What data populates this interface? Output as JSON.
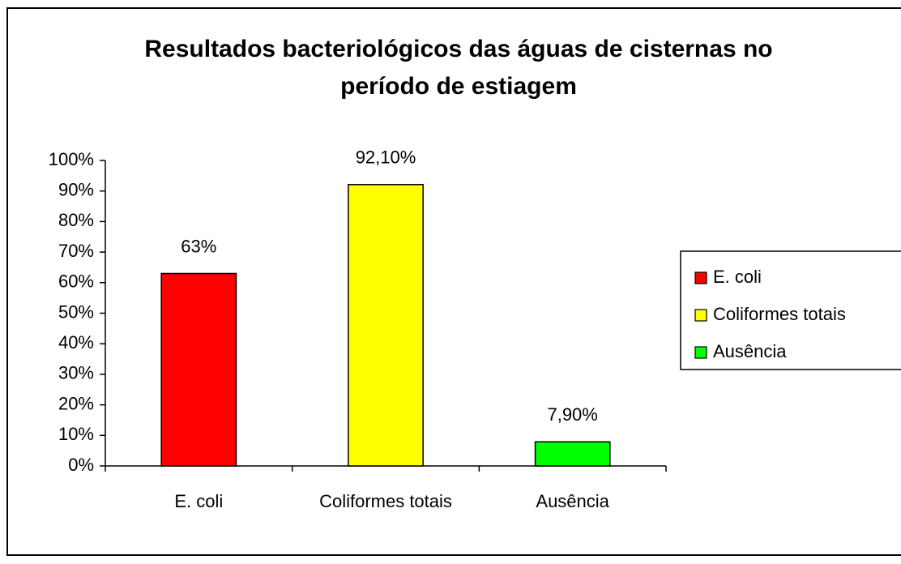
{
  "chart_data": {
    "type": "bar",
    "title": "Resultados bacteriológicos das águas de cisternas no período de estiagem",
    "categories": [
      "E. coli",
      "Coliformes totais",
      "Ausência"
    ],
    "values": [
      63,
      92.1,
      7.9
    ],
    "value_labels": [
      "63%",
      "92,10%",
      "7,90%"
    ],
    "colors": [
      "#ff0000",
      "#ffff00",
      "#00ff00"
    ],
    "ylim": [
      0,
      100
    ],
    "yticks": [
      {
        "value": 0,
        "label": "0%"
      },
      {
        "value": 10,
        "label": "10%"
      },
      {
        "value": 20,
        "label": "20%"
      },
      {
        "value": 30,
        "label": "30%"
      },
      {
        "value": 40,
        "label": "40%"
      },
      {
        "value": 50,
        "label": "50%"
      },
      {
        "value": 60,
        "label": "60%"
      },
      {
        "value": 70,
        "label": "70%"
      },
      {
        "value": 80,
        "label": "80%"
      },
      {
        "value": 90,
        "label": "90%"
      },
      {
        "value": 100,
        "label": "100%"
      }
    ],
    "grid": false,
    "legend": "right"
  }
}
